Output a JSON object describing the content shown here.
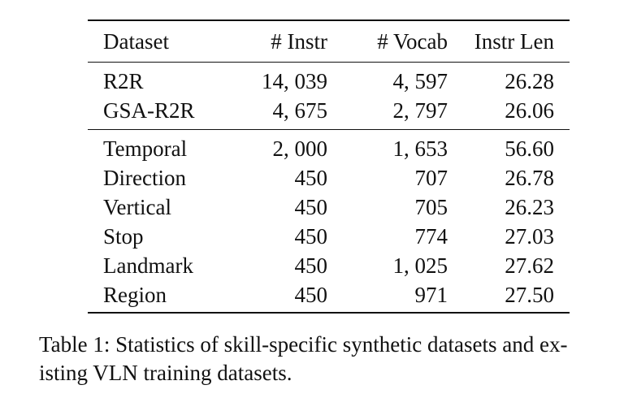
{
  "table": {
    "headers": {
      "dataset": "Dataset",
      "instr": "# Instr",
      "vocab": "# Vocab",
      "instr_len": "Instr Len"
    },
    "group1": [
      {
        "dataset": "R2R",
        "instr": "14, 039",
        "vocab": "4, 597",
        "instr_len": "26.28"
      },
      {
        "dataset": "GSA-R2R",
        "instr": "4, 675",
        "vocab": "2, 797",
        "instr_len": "26.06"
      }
    ],
    "group2": [
      {
        "dataset": "Temporal",
        "instr": "2, 000",
        "vocab": "1, 653",
        "instr_len": "56.60"
      },
      {
        "dataset": "Direction",
        "instr": "450",
        "vocab": "707",
        "instr_len": "26.78"
      },
      {
        "dataset": "Vertical",
        "instr": "450",
        "vocab": "705",
        "instr_len": "26.23"
      },
      {
        "dataset": "Stop",
        "instr": "450",
        "vocab": "774",
        "instr_len": "27.03"
      },
      {
        "dataset": "Landmark",
        "instr": "450",
        "vocab": "1, 025",
        "instr_len": "27.62"
      },
      {
        "dataset": "Region",
        "instr": "450",
        "vocab": "971",
        "instr_len": "27.50"
      }
    ]
  },
  "caption": {
    "line1": "Table 1: Statistics of skill-specific synthetic datasets and ex-",
    "line2": "isting VLN training datasets."
  }
}
